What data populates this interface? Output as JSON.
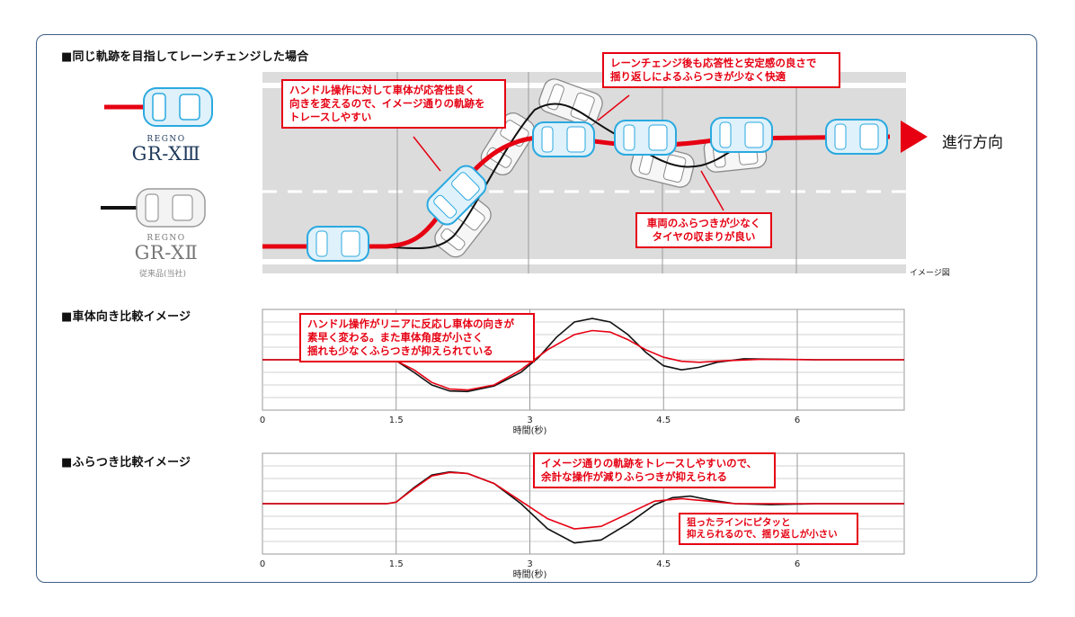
{
  "section_titles": {
    "lane_change": "■同じ軌跡を目指してレーンチェンジした場合",
    "heading_compare": "■車体向き比較イメージ",
    "sway_compare": "■ふらつき比較イメージ"
  },
  "legend": {
    "new_tire": {
      "brand": "REGNO",
      "model": "GR-XⅢ",
      "color": "#e60012"
    },
    "old_tire": {
      "brand": "REGNO",
      "model": "GR-XⅡ",
      "note": "従来品(当社)",
      "color": "#111111"
    }
  },
  "road": {
    "direction_label": "進行方向",
    "image_caption": "イメージ図"
  },
  "callouts": {
    "steering_response": "ハンドル操作に対して車体が応答性良く\n向きを変えるので、イメージ通りの軌跡を\nトレースしやすい",
    "after_lane_change": "レーンチェンジ後も応答性と安定感の良さで\n揺り返しによるふらつきが少なく快適",
    "tire_settle": "車両のふらつきが少なく\nタイヤの収まりが良い",
    "linear_response": "ハンドル操作がリニアに反応し車体の向きが\n素早く変わる。また車体角度が小さく\n揺れも少なくふらつきが抑えられている",
    "less_operation": "イメージ通りの軌跡をトレースしやすいので、\n余計な操作が減りふらつきが抑えられる",
    "small_rebound": "狙ったラインにピタッと\n抑えられるので、揺り返しが小さい"
  },
  "chart_data": [
    {
      "type": "line",
      "title": "車体向き比較イメージ",
      "xlabel": "時間(秒)",
      "ylabel": "",
      "x_ticks": [
        0,
        1.5,
        3,
        4.5,
        6
      ],
      "xlim": [
        0,
        7.2
      ],
      "ylim": [
        -1,
        1
      ],
      "series": [
        {
          "name": "GR-XⅢ",
          "color": "#e60012",
          "x": [
            0,
            1.4,
            1.5,
            1.7,
            1.9,
            2.1,
            2.3,
            2.6,
            2.9,
            3.2,
            3.5,
            3.7,
            3.9,
            4.1,
            4.3,
            4.5,
            4.7,
            4.9,
            5.2,
            5.6,
            6.2,
            7.2
          ],
          "y": [
            0,
            0,
            -0.02,
            -0.2,
            -0.45,
            -0.58,
            -0.6,
            -0.5,
            -0.2,
            0.2,
            0.5,
            0.58,
            0.55,
            0.4,
            0.2,
            0.05,
            -0.03,
            -0.05,
            -0.02,
            0.01,
            0.0,
            0.0
          ]
        },
        {
          "name": "GR-XⅡ",
          "color": "#111111",
          "x": [
            0,
            1.4,
            1.5,
            1.7,
            1.9,
            2.1,
            2.3,
            2.6,
            2.9,
            3.1,
            3.3,
            3.5,
            3.7,
            3.9,
            4.1,
            4.3,
            4.5,
            4.7,
            4.9,
            5.1,
            5.4,
            5.8,
            6.2,
            7.2
          ],
          "y": [
            0,
            0,
            -0.02,
            -0.25,
            -0.5,
            -0.62,
            -0.63,
            -0.52,
            -0.25,
            0.05,
            0.45,
            0.75,
            0.82,
            0.75,
            0.5,
            0.15,
            -0.12,
            -0.2,
            -0.15,
            -0.05,
            0.02,
            0.01,
            0.0,
            0.0
          ]
        }
      ]
    },
    {
      "type": "line",
      "title": "ふらつき比較イメージ",
      "xlabel": "時間(秒)",
      "ylabel": "",
      "x_ticks": [
        0,
        1.5,
        3,
        4.5,
        6
      ],
      "xlim": [
        0,
        7.2
      ],
      "ylim": [
        -1,
        1
      ],
      "series": [
        {
          "name": "GR-XⅢ",
          "color": "#e60012",
          "x": [
            0,
            1.4,
            1.5,
            1.7,
            1.9,
            2.1,
            2.3,
            2.6,
            2.9,
            3.2,
            3.5,
            3.8,
            4.1,
            4.4,
            4.7,
            5.0,
            5.3,
            5.7,
            6.2,
            7.2
          ],
          "y": [
            0,
            0,
            0.03,
            0.3,
            0.55,
            0.62,
            0.6,
            0.4,
            0.05,
            -0.3,
            -0.5,
            -0.45,
            -0.2,
            0.05,
            0.1,
            0.05,
            0.0,
            0.0,
            0.0,
            0.0
          ]
        },
        {
          "name": "GR-XⅡ",
          "color": "#111111",
          "x": [
            0,
            1.4,
            1.5,
            1.7,
            1.9,
            2.1,
            2.3,
            2.6,
            2.9,
            3.2,
            3.5,
            3.8,
            4.1,
            4.4,
            4.6,
            4.8,
            5.0,
            5.3,
            5.7,
            6.2,
            7.2
          ],
          "y": [
            0,
            0,
            0.03,
            0.32,
            0.57,
            0.63,
            0.6,
            0.4,
            0.0,
            -0.5,
            -0.78,
            -0.72,
            -0.4,
            -0.02,
            0.12,
            0.15,
            0.08,
            0.0,
            -0.02,
            0.0,
            0.0
          ]
        }
      ]
    }
  ]
}
